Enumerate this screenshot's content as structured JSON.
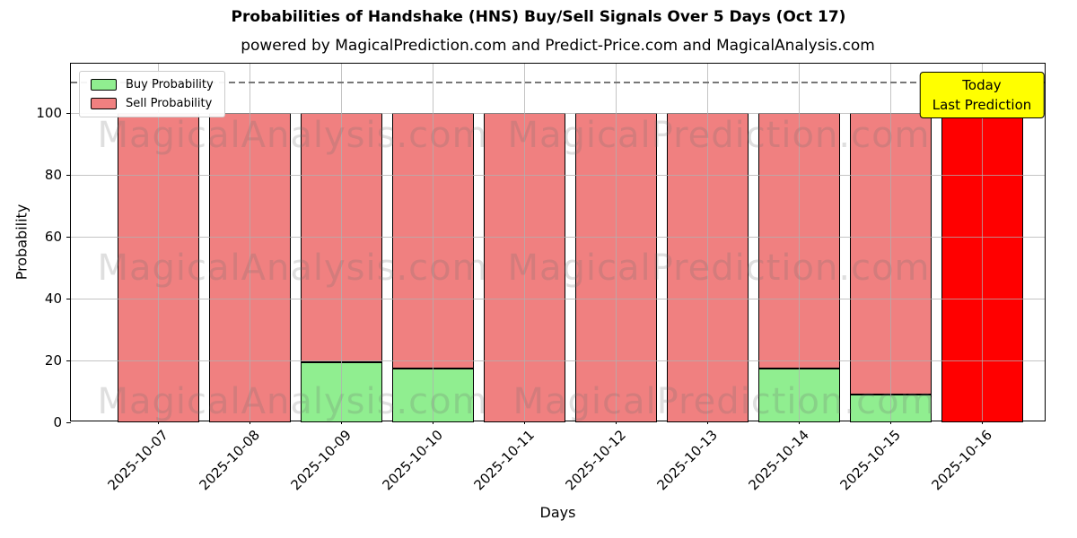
{
  "chart_data": {
    "type": "bar",
    "stacked": true,
    "title": "Probabilities of Handshake (HNS) Buy/Sell Signals Over 5 Days (Oct 17)",
    "subtitle": "powered by MagicalPrediction.com and Predict-Price.com and MagicalAnalysis.com",
    "xlabel": "Days",
    "ylabel": "Probability",
    "categories": [
      "2025-10-07",
      "2025-10-08",
      "2025-10-09",
      "2025-10-10",
      "2025-10-11",
      "2025-10-12",
      "2025-10-13",
      "2025-10-14",
      "2025-10-15",
      "2025-10-16"
    ],
    "series": [
      {
        "name": "Buy Probability",
        "color": "#90EE90",
        "values": [
          0,
          0,
          19.5,
          17.5,
          0,
          0,
          0,
          17.5,
          9,
          0
        ]
      },
      {
        "name": "Sell Probability",
        "color": "#F08080",
        "values": [
          100,
          100,
          80.5,
          82.5,
          100,
          100,
          100,
          82.5,
          91,
          0
        ]
      },
      {
        "name": "Last Prediction (Today, Sell)",
        "color": "#FF0000",
        "values": [
          0,
          0,
          0,
          0,
          0,
          0,
          0,
          0,
          0,
          100
        ]
      }
    ],
    "ylim": [
      0,
      116
    ],
    "yticks": [
      0,
      20,
      40,
      60,
      80,
      100
    ],
    "grid": true,
    "bar_edge_color": "#000000",
    "dashed_line_y": 110,
    "dashed_line_color": "#777777",
    "legend": {
      "position": "upper left",
      "entries": [
        {
          "label": "Buy Probability",
          "color": "#90EE90"
        },
        {
          "label": "Sell Probability",
          "color": "#F08080"
        }
      ]
    },
    "annotation": {
      "lines": [
        "Today",
        "Last Prediction"
      ],
      "bg": "#FFFF00",
      "border": "#000000"
    },
    "watermarks": [
      "MagicalAnalysis.com",
      "MagicalPrediction.com"
    ]
  }
}
